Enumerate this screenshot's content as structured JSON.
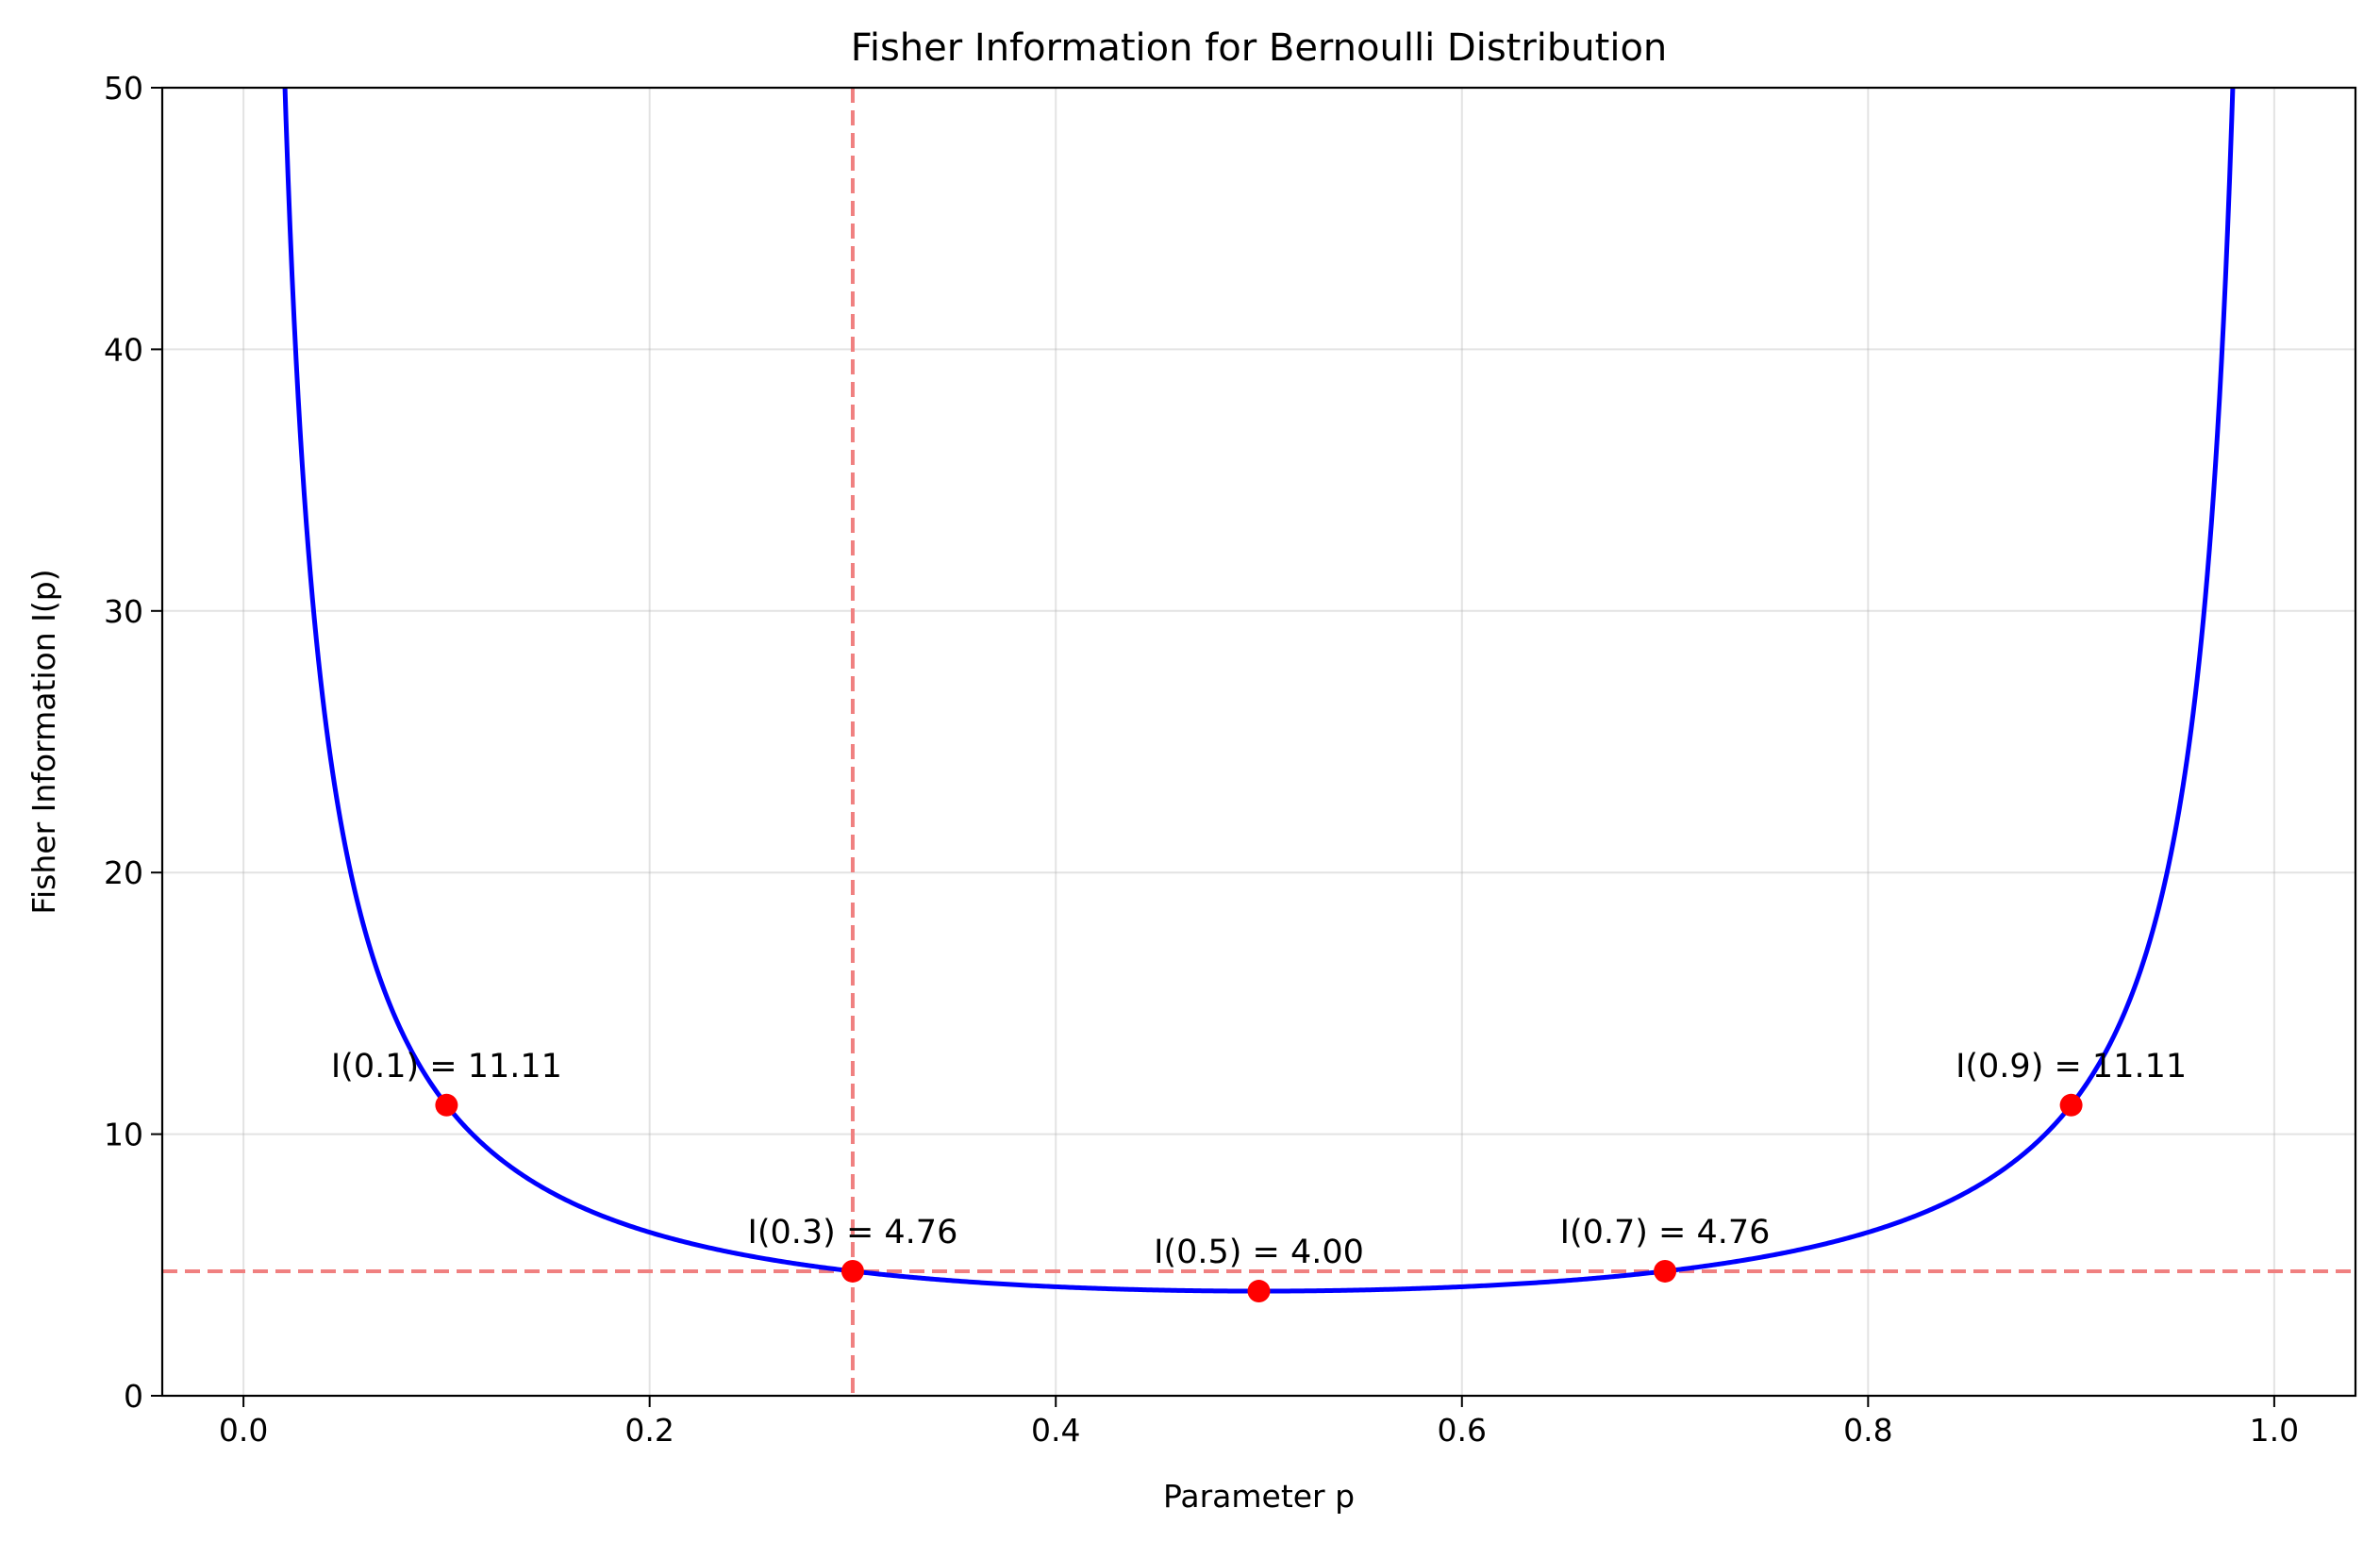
{
  "chart_data": {
    "type": "line",
    "title": "Fisher Information for Bernoulli Distribution",
    "xlabel": "Parameter p",
    "ylabel": "Fisher Information I(p)",
    "xlim": [
      -0.04,
      1.04
    ],
    "ylim": [
      0,
      50
    ],
    "x_ticks": [
      0.0,
      0.2,
      0.4,
      0.6,
      0.8,
      1.0
    ],
    "x_tick_labels": [
      "0.0",
      "0.2",
      "0.4",
      "0.6",
      "0.8",
      "1.0"
    ],
    "y_ticks": [
      0,
      10,
      20,
      30,
      40,
      50
    ],
    "y_tick_labels": [
      "0",
      "10",
      "20",
      "30",
      "40",
      "50"
    ],
    "grid": true,
    "series": [
      {
        "function": "1/(p*(1-p))",
        "p_range": [
          0.001,
          0.999
        ],
        "color": "#0000ff"
      }
    ],
    "points": [
      {
        "x": 0.1,
        "y": 11.11,
        "label": "I(0.1) = 11.11"
      },
      {
        "x": 0.3,
        "y": 4.76,
        "label": "I(0.3) = 4.76"
      },
      {
        "x": 0.5,
        "y": 4.0,
        "label": "I(0.5) = 4.00"
      },
      {
        "x": 0.7,
        "y": 4.76,
        "label": "I(0.7) = 4.76"
      },
      {
        "x": 0.9,
        "y": 11.11,
        "label": "I(0.9) = 11.11"
      }
    ],
    "point_color": "#ff0000",
    "reference_lines": {
      "vertical_x": 0.3,
      "horizontal_y": 4.76,
      "color": "#f08080",
      "style": "dashed"
    }
  }
}
